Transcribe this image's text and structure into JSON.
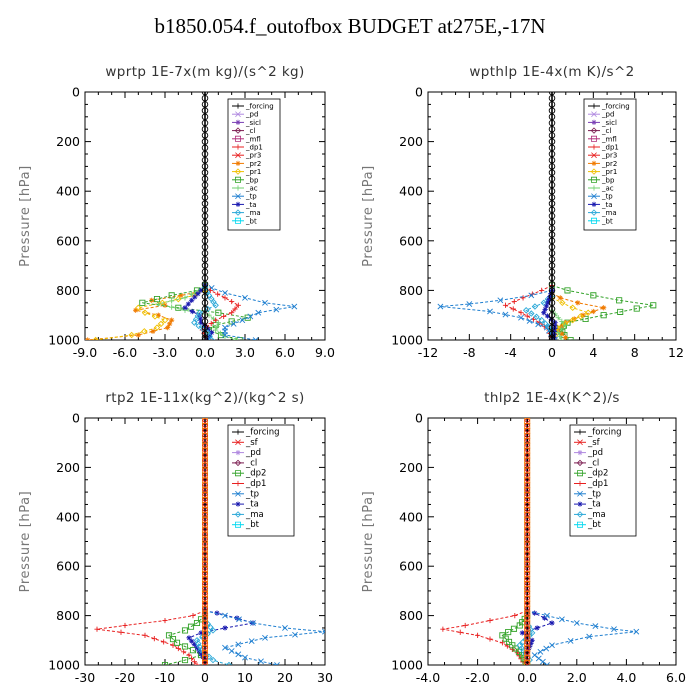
{
  "page": {
    "title": "b1850.054.f_outofbox  BUDGET at275E,-17N"
  },
  "colors": {
    "_forcing": "#000000",
    "_pd": "#b089e0",
    "_sicl": "#7a3fb5",
    "_cl": "#7a1b4f",
    "_mfl": "#b0307a",
    "_dp1": "#e82020",
    "_pr3": "#e82020",
    "_pr2": "#f07a00",
    "_pr1": "#f0c000",
    "_bp": "#34a32a",
    "_ac": "#6fd06f",
    "_tp": "#1f7fd0",
    "_ta": "#1a1ab0",
    "_ma": "#2aa8d8",
    "_bt": "#00d8f0",
    "_sf": "#e82020",
    "_dp2": "#34a32a"
  },
  "chart_data": [
    {
      "type": "line",
      "title": "wprtp  1E-7x(m kg)/(s^2 kg)",
      "ylabel": "Pressure [hPa]",
      "xlim": [
        -9,
        9
      ],
      "ylim": [
        1000,
        0
      ],
      "xticks": [
        "-9.0",
        "-6.0",
        "-3.0",
        "0.0",
        "3.0",
        "6.0",
        "9.0"
      ],
      "yticks": [
        "0",
        "200",
        "400",
        "600",
        "800",
        "1000"
      ],
      "legend": [
        "_forcing",
        "_pd",
        "_sicl",
        "_cl",
        "_mfl",
        "_dp1",
        "_pr3",
        "_pr2",
        "_pr1",
        "_bp",
        "_ac",
        "_tp",
        "_ta",
        "_ma",
        "_bt"
      ],
      "legend_position": "top-right",
      "series": [
        {
          "name": "_forcing",
          "x": [
            0,
            0,
            0,
            0,
            0,
            0,
            0,
            0,
            0,
            0,
            0,
            0,
            0,
            0,
            0,
            0,
            0,
            0,
            0,
            0,
            0,
            0,
            0,
            0,
            0,
            0,
            0,
            0,
            0,
            0,
            0,
            0,
            0,
            0,
            0,
            0,
            0,
            0,
            0,
            0,
            0,
            0
          ],
          "y": [
            0,
            25,
            50,
            75,
            100,
            125,
            150,
            175,
            200,
            225,
            250,
            275,
            300,
            325,
            350,
            375,
            400,
            425,
            450,
            475,
            500,
            525,
            550,
            575,
            600,
            625,
            650,
            675,
            700,
            725,
            750,
            775,
            800,
            825,
            850,
            875,
            900,
            925,
            950,
            975,
            990,
            1000
          ]
        },
        {
          "name": "_pr2",
          "x": [
            0,
            0,
            -1.8,
            -4,
            -3,
            -5.2,
            -3.5,
            -2.5,
            -2.8,
            -5,
            -8.8
          ],
          "y": [
            780,
            800,
            820,
            840,
            860,
            880,
            900,
            920,
            950,
            980,
            1000
          ]
        },
        {
          "name": "_pr1",
          "x": [
            0,
            0,
            -0.8,
            -3.2,
            -5,
            -4.5,
            -3,
            -3.6,
            -5.5,
            -8.2
          ],
          "y": [
            780,
            800,
            820,
            850,
            870,
            890,
            920,
            950,
            980,
            1000
          ]
        },
        {
          "name": "_bp",
          "x": [
            0,
            -0.6,
            -2.5,
            -4.7,
            -2,
            1,
            3.2,
            0.8,
            0.3,
            1.2,
            2.6
          ],
          "y": [
            780,
            800,
            820,
            850,
            870,
            890,
            910,
            940,
            960,
            980,
            1000
          ]
        },
        {
          "name": "_ac",
          "x": [
            0,
            -0.5,
            -1.5,
            -3.5,
            -1.5,
            0.3,
            1,
            0.8,
            1.5,
            2.3
          ],
          "y": [
            780,
            800,
            830,
            855,
            880,
            900,
            930,
            960,
            985,
            1000
          ]
        },
        {
          "name": "_tp",
          "x": [
            0,
            0.5,
            1.5,
            3,
            4.5,
            6.7,
            4,
            2.8,
            1.5,
            1.5,
            3.8
          ],
          "y": [
            780,
            790,
            810,
            830,
            850,
            865,
            890,
            920,
            950,
            980,
            1000
          ]
        },
        {
          "name": "_dp1",
          "x": [
            0,
            0.4,
            1.5,
            2.5,
            2,
            0.8,
            -0.2,
            0.2
          ],
          "y": [
            780,
            800,
            830,
            860,
            890,
            920,
            960,
            1000
          ]
        },
        {
          "name": "_ta",
          "x": [
            0,
            -0.3,
            -1,
            -1.5,
            -0.4,
            -0.3,
            0.5,
            0.2
          ],
          "y": [
            780,
            800,
            840,
            870,
            900,
            930,
            970,
            1000
          ]
        },
        {
          "name": "_ma",
          "x": [
            0,
            0.3,
            0.8,
            -0.4,
            -0.8,
            0.2,
            0.5
          ],
          "y": [
            790,
            820,
            860,
            890,
            930,
            970,
            1000
          ]
        }
      ]
    },
    {
      "type": "line",
      "title": "wpthlp  1E-4x(m K)/s^2",
      "ylabel": "Pressure [hPa]",
      "xlim": [
        -12,
        12
      ],
      "ylim": [
        1000,
        0
      ],
      "xticks": [
        "-12",
        "-8",
        "-4",
        "0",
        "4",
        "8",
        "12"
      ],
      "yticks": [
        "0",
        "200",
        "400",
        "600",
        "800",
        "1000"
      ],
      "legend": [
        "_forcing",
        "_pd",
        "_sicl",
        "_cl",
        "_mfl",
        "_dp1",
        "_pr3",
        "_pr2",
        "_pr1",
        "_bp",
        "_ac",
        "_tp",
        "_ta",
        "_ma",
        "_bt"
      ],
      "legend_position": "top-right",
      "series": [
        {
          "name": "_forcing",
          "x": [
            0,
            0,
            0,
            0,
            0,
            0,
            0,
            0,
            0,
            0,
            0,
            0,
            0,
            0,
            0,
            0,
            0,
            0,
            0,
            0,
            0,
            0,
            0,
            0,
            0,
            0,
            0,
            0,
            0,
            0,
            0,
            0,
            0,
            0,
            0,
            0,
            0,
            0,
            0,
            0,
            0,
            0
          ],
          "y": [
            0,
            25,
            50,
            75,
            100,
            125,
            150,
            175,
            200,
            225,
            250,
            275,
            300,
            325,
            350,
            375,
            400,
            425,
            450,
            475,
            500,
            525,
            550,
            575,
            600,
            625,
            650,
            675,
            700,
            725,
            750,
            775,
            800,
            825,
            850,
            875,
            900,
            925,
            950,
            975,
            990,
            1000
          ]
        },
        {
          "name": "_bp",
          "x": [
            0,
            1.5,
            4,
            6.5,
            9.8,
            5,
            1.5,
            0.8,
            1.2,
            1.8
          ],
          "y": [
            780,
            800,
            820,
            840,
            860,
            900,
            930,
            955,
            980,
            1000
          ]
        },
        {
          "name": "_pr2",
          "x": [
            0,
            0.8,
            2.5,
            5,
            3,
            1.3,
            0.6,
            1.3
          ],
          "y": [
            810,
            830,
            850,
            870,
            900,
            930,
            960,
            990
          ]
        },
        {
          "name": "_pr1",
          "x": [
            0,
            1,
            2,
            3.5,
            2,
            0.5,
            0.3
          ],
          "y": [
            830,
            850,
            870,
            890,
            920,
            950,
            980
          ]
        },
        {
          "name": "_dp1",
          "x": [
            0,
            -1,
            -2.8,
            -4.5,
            -3,
            -1.2,
            -0.3,
            0
          ],
          "y": [
            780,
            800,
            830,
            860,
            890,
            930,
            960,
            1000
          ]
        },
        {
          "name": "_tp",
          "x": [
            0,
            -2,
            -5,
            -8,
            -10.8,
            -6,
            -3,
            -0.5,
            0.3
          ],
          "y": [
            800,
            820,
            840,
            855,
            865,
            885,
            910,
            950,
            1000
          ]
        },
        {
          "name": "_ma",
          "x": [
            0,
            -0.8,
            -2.5,
            -1,
            0
          ],
          "y": [
            820,
            850,
            880,
            920,
            960
          ]
        },
        {
          "name": "_ta",
          "x": [
            0,
            -0.4,
            -0.8,
            0.3,
            0.2
          ],
          "y": [
            800,
            850,
            890,
            930,
            990
          ]
        },
        {
          "name": "_ac",
          "x": [
            0,
            0.6,
            1.3,
            0.6,
            0.9
          ],
          "y": [
            880,
            910,
            940,
            970,
            1000
          ]
        }
      ]
    },
    {
      "type": "line",
      "title": "rtp2  1E-11x(kg^2)/(kg^2 s)",
      "ylabel": "Pressure [hPa]",
      "xlim": [
        -30,
        30
      ],
      "ylim": [
        1000,
        0
      ],
      "xticks": [
        "-30",
        "-20",
        "-10",
        "0",
        "10",
        "20",
        "30"
      ],
      "yticks": [
        "0",
        "200",
        "400",
        "600",
        "800",
        "1000"
      ],
      "legend": [
        "_forcing",
        "_sf",
        "_pd",
        "_cl",
        "_dp2",
        "_dp1",
        "_tp",
        "_ta",
        "_ma",
        "_bt"
      ],
      "legend_position": "top-right",
      "series": [
        {
          "name": "_forcing",
          "x": [
            0,
            0,
            0,
            0,
            0,
            0,
            0,
            0,
            0,
            0,
            0,
            0,
            0,
            0,
            0,
            0,
            0,
            0,
            0,
            0,
            0,
            0,
            0,
            0,
            0,
            0,
            0,
            0,
            0,
            0,
            0,
            0,
            0,
            0,
            0,
            0,
            0,
            0,
            0,
            0,
            0,
            0
          ],
          "y": [
            0,
            25,
            50,
            75,
            100,
            125,
            150,
            175,
            200,
            225,
            250,
            275,
            300,
            325,
            350,
            375,
            400,
            425,
            450,
            475,
            500,
            525,
            550,
            575,
            600,
            625,
            650,
            675,
            700,
            725,
            750,
            775,
            800,
            825,
            850,
            875,
            900,
            925,
            950,
            975,
            990,
            1000
          ]
        },
        {
          "name": "_dp1",
          "x": [
            0,
            -3,
            -10,
            -20,
            -27,
            -15,
            -8,
            -4,
            -2
          ],
          "y": [
            780,
            800,
            820,
            840,
            855,
            880,
            920,
            960,
            1000
          ]
        },
        {
          "name": "_dp2",
          "x": [
            0,
            -2,
            -5,
            -9,
            -7,
            -3,
            -1,
            -5,
            -10
          ],
          "y": [
            800,
            830,
            860,
            880,
            910,
            940,
            960,
            980,
            1000
          ]
        },
        {
          "name": "_ta",
          "x": [
            0,
            3,
            8,
            12,
            5,
            -1,
            -4,
            -2,
            0
          ],
          "y": [
            780,
            790,
            810,
            830,
            850,
            870,
            890,
            930,
            980
          ]
        },
        {
          "name": "_tp",
          "x": [
            0,
            5,
            12,
            20,
            30,
            15,
            5,
            10,
            18
          ],
          "y": [
            780,
            800,
            830,
            850,
            865,
            890,
            930,
            970,
            1000
          ]
        },
        {
          "name": "_ma",
          "x": [
            0,
            2,
            -2,
            -1,
            2,
            6
          ],
          "y": [
            820,
            860,
            900,
            940,
            980,
            1000
          ]
        }
      ]
    },
    {
      "type": "line",
      "title": "thlp2  1E-4x(K^2)/s",
      "ylabel": "Pressure [hPa]",
      "xlim": [
        -4,
        6
      ],
      "ylim": [
        1000,
        0
      ],
      "xticks": [
        "-4.0",
        "-2.0",
        "0.0",
        "2.0",
        "4.0",
        "6.0"
      ],
      "yticks": [
        "0",
        "200",
        "400",
        "600",
        "800",
        "1000"
      ],
      "legend": [
        "_forcing",
        "_sf",
        "_pd",
        "_cl",
        "_dp2",
        "_dp1",
        "_tp",
        "_ta",
        "_ma",
        "_bt"
      ],
      "legend_position": "top-right",
      "series": [
        {
          "name": "_forcing",
          "x": [
            0,
            0,
            0,
            0,
            0,
            0,
            0,
            0,
            0,
            0,
            0,
            0,
            0,
            0,
            0,
            0,
            0,
            0,
            0,
            0,
            0,
            0,
            0,
            0,
            0,
            0,
            0,
            0,
            0,
            0,
            0,
            0,
            0,
            0,
            0,
            0,
            0,
            0,
            0,
            0,
            0,
            0
          ],
          "y": [
            0,
            25,
            50,
            75,
            100,
            125,
            150,
            175,
            200,
            225,
            250,
            275,
            300,
            325,
            350,
            375,
            400,
            425,
            450,
            475,
            500,
            525,
            550,
            575,
            600,
            625,
            650,
            675,
            700,
            725,
            750,
            775,
            800,
            825,
            850,
            875,
            900,
            925,
            950,
            975,
            990,
            1000
          ]
        },
        {
          "name": "_dp1",
          "x": [
            0,
            -0.5,
            -1.5,
            -2.5,
            -3.4,
            -2,
            -1,
            -0.4,
            -0.1
          ],
          "y": [
            780,
            800,
            820,
            840,
            855,
            880,
            910,
            950,
            1000
          ]
        },
        {
          "name": "_dp2",
          "x": [
            0,
            -0.3,
            -1,
            -0.6,
            -0.2,
            0
          ],
          "y": [
            800,
            840,
            880,
            920,
            960,
            1000
          ]
        },
        {
          "name": "_ta",
          "x": [
            0,
            0.3,
            0.7,
            1,
            0.4,
            -0.2,
            0.2,
            0
          ],
          "y": [
            780,
            790,
            810,
            830,
            850,
            870,
            900,
            950
          ]
        },
        {
          "name": "_tp",
          "x": [
            0,
            0.8,
            2,
            3.5,
            4.4,
            2.5,
            1,
            0.3,
            0.8
          ],
          "y": [
            780,
            800,
            830,
            855,
            865,
            885,
            920,
            960,
            1000
          ]
        },
        {
          "name": "_ma",
          "x": [
            0,
            0.2,
            -0.3,
            0.1
          ],
          "y": [
            830,
            870,
            920,
            980
          ]
        }
      ]
    }
  ]
}
